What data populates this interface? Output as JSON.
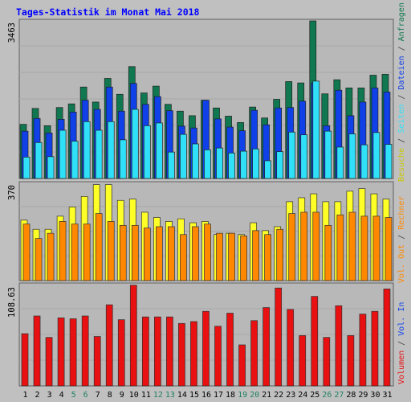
{
  "title": "Tages-Statistik im Monat Mai 2018",
  "colors": {
    "background": "#c0c0c0",
    "panel": "#b8b8b8",
    "grid": "#a8a8a8",
    "anfragen": "#107850",
    "dateien": "#1040e8",
    "seiten": "#30e0f8",
    "besuche": "#ffff28",
    "rechner": "#ff8800",
    "volumen": "#e81010",
    "title": "#0000ff"
  },
  "chart_data": [
    {
      "type": "bar",
      "panel": "top",
      "ymax_label": "3463",
      "ylim": [
        0,
        3463
      ],
      "categories": [
        "1",
        "2",
        "3",
        "4",
        "5",
        "6",
        "7",
        "8",
        "9",
        "10",
        "11",
        "12",
        "13",
        "14",
        "15",
        "16",
        "17",
        "18",
        "19",
        "20",
        "21",
        "22",
        "23",
        "24",
        "25",
        "26",
        "27",
        "28",
        "29",
        "30",
        "31"
      ],
      "series": [
        {
          "name": "Anfragen",
          "values": [
            1190,
            1540,
            1160,
            1560,
            1640,
            2010,
            1680,
            2200,
            1850,
            2460,
            1880,
            2030,
            1630,
            1480,
            1380,
            1720,
            1550,
            1370,
            1230,
            1570,
            1330,
            1740,
            2130,
            2100,
            3463,
            1860,
            2170,
            1990,
            1990,
            2270,
            2290
          ]
        },
        {
          "name": "Dateien",
          "values": [
            1040,
            1320,
            1000,
            1300,
            1460,
            1720,
            1520,
            2010,
            1480,
            2090,
            1630,
            1800,
            1490,
            1150,
            1110,
            1720,
            1310,
            1130,
            1050,
            1500,
            1180,
            1550,
            1560,
            1700,
            2100,
            1160,
            1940,
            1380,
            1680,
            1990,
            1900
          ]
        },
        {
          "name": "Seiten",
          "values": [
            470,
            790,
            480,
            1060,
            820,
            1250,
            1060,
            1250,
            850,
            1520,
            1160,
            1220,
            580,
            970,
            760,
            630,
            670,
            560,
            600,
            650,
            390,
            590,
            1020,
            960,
            2140,
            1040,
            690,
            980,
            740,
            1010,
            750
          ]
        }
      ],
      "xlabel": "",
      "ylabel": ""
    },
    {
      "type": "bar",
      "panel": "middle",
      "ymax_label": "370",
      "ylim": [
        0,
        370
      ],
      "categories": [
        "1",
        "2",
        "3",
        "4",
        "5",
        "6",
        "7",
        "8",
        "9",
        "10",
        "11",
        "12",
        "13",
        "14",
        "15",
        "16",
        "17",
        "18",
        "19",
        "20",
        "21",
        "22",
        "23",
        "24",
        "25",
        "26",
        "27",
        "28",
        "29",
        "30",
        "31"
      ],
      "series": [
        {
          "name": "Besuche",
          "values": [
            230,
            195,
            195,
            245,
            280,
            320,
            365,
            365,
            305,
            310,
            260,
            240,
            225,
            235,
            220,
            225,
            175,
            180,
            175,
            220,
            190,
            205,
            300,
            315,
            330,
            300,
            300,
            340,
            350,
            330,
            310
          ]
        },
        {
          "name": "Rechner",
          "values": [
            215,
            160,
            180,
            225,
            215,
            215,
            255,
            225,
            210,
            210,
            200,
            205,
            205,
            175,
            205,
            215,
            180,
            180,
            170,
            190,
            175,
            195,
            255,
            260,
            260,
            210,
            250,
            260,
            245,
            245,
            240
          ]
        }
      ],
      "xlabel": "",
      "ylabel": ""
    },
    {
      "type": "bar",
      "panel": "bottom",
      "ymax_label": "108.63",
      "ylim": [
        0,
        108.63
      ],
      "categories": [
        "1",
        "2",
        "3",
        "4",
        "5",
        "6",
        "7",
        "8",
        "9",
        "10",
        "11",
        "12",
        "13",
        "14",
        "15",
        "16",
        "17",
        "18",
        "19",
        "20",
        "21",
        "22",
        "23",
        "24",
        "25",
        "26",
        "27",
        "28",
        "29",
        "30",
        "31"
      ],
      "series": [
        {
          "name": "Volumen",
          "values": [
            56,
            75,
            52,
            73,
            72,
            75,
            53,
            87,
            71,
            108,
            74,
            74,
            74,
            67,
            69,
            80,
            64,
            78,
            44,
            70,
            84,
            105,
            82,
            54,
            96,
            52,
            86,
            54,
            77,
            80,
            104
          ]
        }
      ],
      "xlabel": "",
      "ylabel": ""
    }
  ],
  "x_tick_colors": {
    "default": "#000000",
    "weekend": "#208060",
    "weekend_days": [
      "5",
      "6",
      "12",
      "13",
      "19",
      "20",
      "26",
      "27"
    ]
  },
  "right_legend": {
    "top": [
      {
        "text": "Anfragen",
        "color": "#107850"
      },
      {
        "text": "Dateien",
        "color": "#1040e8"
      },
      {
        "text": "Seiten",
        "color": "#30e0f8"
      },
      {
        "text": "Besuche",
        "color": "#c8c800"
      }
    ],
    "middle": [
      {
        "text": "Rechner",
        "color": "#ff8800"
      },
      {
        "text": "Vol. Out",
        "color": "#ff8800"
      }
    ],
    "bottom": [
      {
        "text": "Vol. In",
        "color": "#1040e8"
      },
      {
        "text": "Volumen",
        "color": "#e81010"
      }
    ],
    "separator": " / ",
    "separator_color": "#404040"
  }
}
